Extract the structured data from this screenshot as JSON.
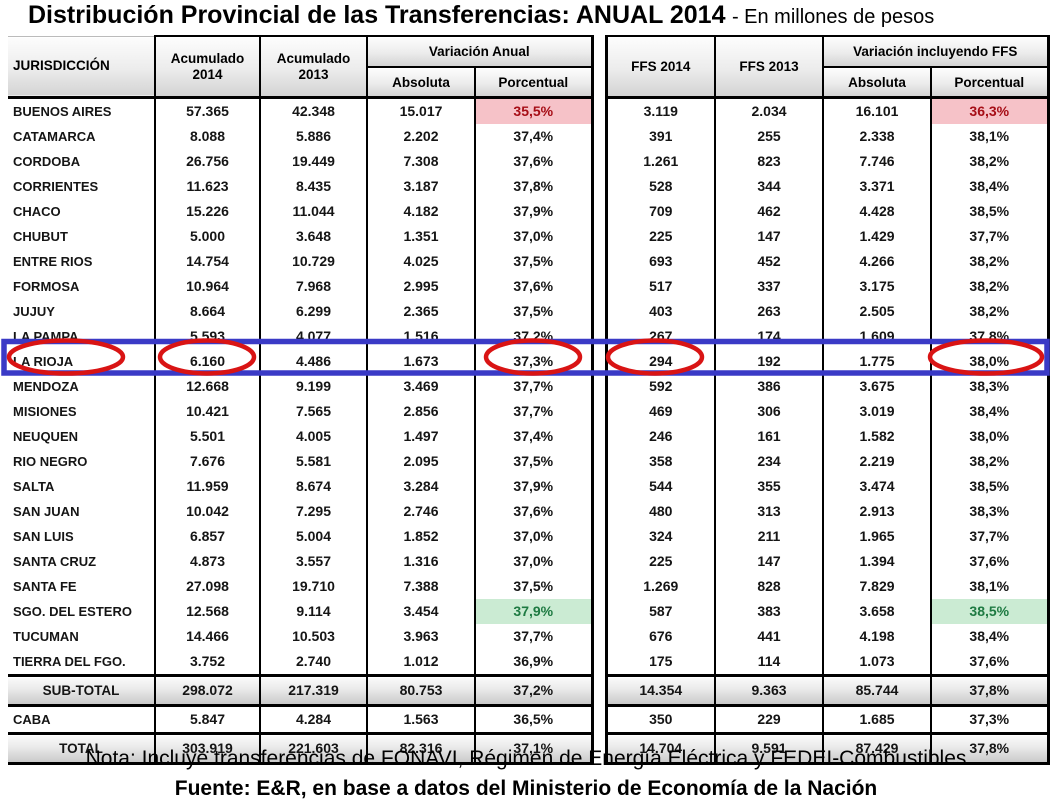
{
  "title": {
    "main": "Distribución Provincial de las Transferencias: ANUAL 2014",
    "suffix": "- En millones de pesos"
  },
  "table": {
    "headers": {
      "jurisdiccion": "JURISDICCIÓN",
      "acumulado_2014": "Acumulado 2014",
      "acumulado_2013": "Acumulado 2013",
      "variacion_anual": "Variación Anual",
      "absoluta": "Absoluta",
      "porcentual": "Porcentual",
      "ffs_2014": "FFS 2014",
      "ffs_2013": "FFS 2013",
      "variacion_ffs": "Variación incluyendo FFS",
      "absoluta_ffs": "Absoluta",
      "porcentual_ffs": "Porcentual"
    },
    "rows": [
      {
        "name": "BUENOS AIRES",
        "values": [
          "57.365",
          "42.348",
          "15.017",
          "35,5%",
          "3.119",
          "2.034",
          "16.101",
          "36,3%"
        ],
        "pct_highlight": "pink"
      },
      {
        "name": "CATAMARCA",
        "values": [
          "8.088",
          "5.886",
          "2.202",
          "37,4%",
          "391",
          "255",
          "2.338",
          "38,1%"
        ]
      },
      {
        "name": "CORDOBA",
        "values": [
          "26.756",
          "19.449",
          "7.308",
          "37,6%",
          "1.261",
          "823",
          "7.746",
          "38,2%"
        ]
      },
      {
        "name": "CORRIENTES",
        "values": [
          "11.623",
          "8.435",
          "3.187",
          "37,8%",
          "528",
          "344",
          "3.371",
          "38,4%"
        ]
      },
      {
        "name": "CHACO",
        "values": [
          "15.226",
          "11.044",
          "4.182",
          "37,9%",
          "709",
          "462",
          "4.428",
          "38,5%"
        ]
      },
      {
        "name": "CHUBUT",
        "values": [
          "5.000",
          "3.648",
          "1.351",
          "37,0%",
          "225",
          "147",
          "1.429",
          "37,7%"
        ]
      },
      {
        "name": "ENTRE RIOS",
        "values": [
          "14.754",
          "10.729",
          "4.025",
          "37,5%",
          "693",
          "452",
          "4.266",
          "38,2%"
        ]
      },
      {
        "name": "FORMOSA",
        "values": [
          "10.964",
          "7.968",
          "2.995",
          "37,6%",
          "517",
          "337",
          "3.175",
          "38,2%"
        ]
      },
      {
        "name": "JUJUY",
        "values": [
          "8.664",
          "6.299",
          "2.365",
          "37,5%",
          "403",
          "263",
          "2.505",
          "38,2%"
        ]
      },
      {
        "name": "LA PAMPA",
        "values": [
          "5.593",
          "4.077",
          "1.516",
          "37,2%",
          "267",
          "174",
          "1.609",
          "37,8%"
        ]
      },
      {
        "name": "LA RIOJA",
        "values": [
          "6.160",
          "4.486",
          "1.673",
          "37,3%",
          "294",
          "192",
          "1.775",
          "38,0%"
        ],
        "annotated": true
      },
      {
        "name": "MENDOZA",
        "values": [
          "12.668",
          "9.199",
          "3.469",
          "37,7%",
          "592",
          "386",
          "3.675",
          "38,3%"
        ]
      },
      {
        "name": "MISIONES",
        "values": [
          "10.421",
          "7.565",
          "2.856",
          "37,7%",
          "469",
          "306",
          "3.019",
          "38,4%"
        ]
      },
      {
        "name": "NEUQUEN",
        "values": [
          "5.501",
          "4.005",
          "1.497",
          "37,4%",
          "246",
          "161",
          "1.582",
          "38,0%"
        ]
      },
      {
        "name": "RIO NEGRO",
        "values": [
          "7.676",
          "5.581",
          "2.095",
          "37,5%",
          "358",
          "234",
          "2.219",
          "38,2%"
        ]
      },
      {
        "name": "SALTA",
        "values": [
          "11.959",
          "8.674",
          "3.284",
          "37,9%",
          "544",
          "355",
          "3.474",
          "38,5%"
        ]
      },
      {
        "name": "SAN JUAN",
        "values": [
          "10.042",
          "7.295",
          "2.746",
          "37,6%",
          "480",
          "313",
          "2.913",
          "38,3%"
        ]
      },
      {
        "name": "SAN LUIS",
        "values": [
          "6.857",
          "5.004",
          "1.852",
          "37,0%",
          "324",
          "211",
          "1.965",
          "37,7%"
        ]
      },
      {
        "name": "SANTA CRUZ",
        "values": [
          "4.873",
          "3.557",
          "1.316",
          "37,0%",
          "225",
          "147",
          "1.394",
          "37,6%"
        ]
      },
      {
        "name": "SANTA FE",
        "values": [
          "27.098",
          "19.710",
          "7.388",
          "37,5%",
          "1.269",
          "828",
          "7.829",
          "38,1%"
        ]
      },
      {
        "name": "SGO. DEL ESTERO",
        "values": [
          "12.568",
          "9.114",
          "3.454",
          "37,9%",
          "587",
          "383",
          "3.658",
          "38,5%"
        ],
        "pct_highlight": "green"
      },
      {
        "name": "TUCUMAN",
        "values": [
          "14.466",
          "10.503",
          "3.963",
          "37,7%",
          "676",
          "441",
          "4.198",
          "38,4%"
        ]
      },
      {
        "name": "TIERRA DEL FGO.",
        "values": [
          "3.752",
          "2.740",
          "1.012",
          "36,9%",
          "175",
          "114",
          "1.073",
          "37,6%"
        ]
      },
      {
        "name": "SUB-TOTAL",
        "type": "subtotal",
        "values": [
          "298.072",
          "217.319",
          "80.753",
          "37,2%",
          "14.354",
          "9.363",
          "85.744",
          "37,8%"
        ]
      },
      {
        "name": "CABA",
        "values": [
          "5.847",
          "4.284",
          "1.563",
          "36,5%",
          "350",
          "229",
          "1.685",
          "37,3%"
        ]
      },
      {
        "name": "TOTAL",
        "type": "total",
        "values": [
          "303.919",
          "221.603",
          "82.316",
          "37,1%",
          "14.704",
          "9.591",
          "87.429",
          "37,8%"
        ]
      }
    ]
  },
  "highlights": {
    "pink_bg": "#F6C2C8",
    "pink_text": "#A60D16",
    "green_bg": "#CBEBD3",
    "green_text": "#1E7A42"
  },
  "annotations": {
    "highlighted_row": "LA RIOJA",
    "box_color": "#3A3AC6",
    "circle_color": "#D91414",
    "circled_values": [
      "LA RIOJA",
      "6.160",
      "37,3%",
      "294",
      "38,0%"
    ]
  },
  "footer": {
    "nota": "Nota: Incluye transferencias de FONAVI, Régimen de Energía Eléctrica y FEDEI-Combustibles",
    "fuente": "Fuente: E&R, en base a datos del Ministerio de Economía de la Nación"
  }
}
